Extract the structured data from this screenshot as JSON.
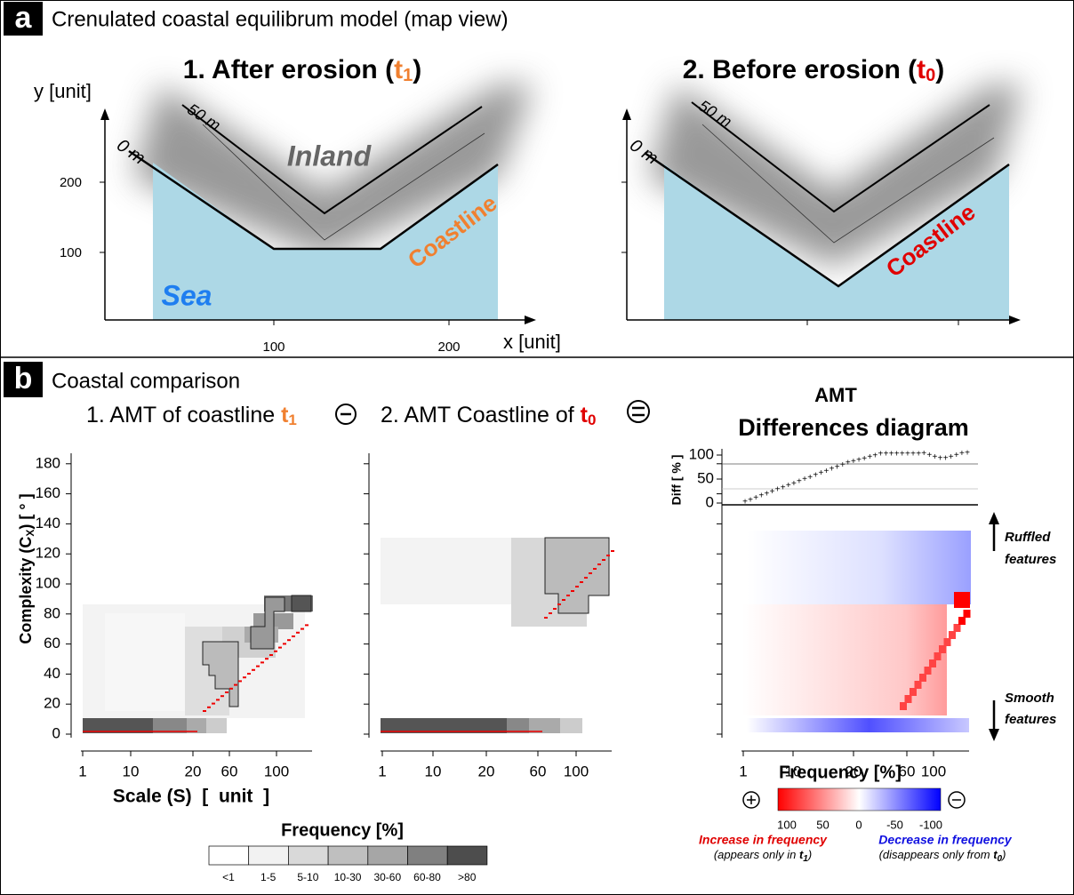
{
  "panel_a": {
    "letter": "a",
    "title": "Crenulated coastal equilibrum model (map view)",
    "map1": {
      "title": "1. After erosion (",
      "time": "t",
      "index": "1",
      "close": ")",
      "y_label": "y [unit]",
      "x_label": "x [unit]",
      "yticks": [
        "200",
        "100"
      ],
      "xticks": [
        "100",
        "200"
      ],
      "contour_0": "0 m",
      "contour_50": "50 m",
      "inland": "Inland",
      "coastline": "Coastline",
      "sea": "Sea"
    },
    "map2": {
      "title": "2. Before erosion (",
      "time": "t",
      "index": "0",
      "close": ")",
      "contour_0": "0 m",
      "contour_50": "50 m",
      "coastline": "Coastline"
    }
  },
  "panel_b": {
    "letter": "b",
    "title": "Coastal comparison",
    "chart1": {
      "title": "1. AMT of coastline ",
      "time": "t",
      "index": "1",
      "xticks": [
        "1",
        "10",
        "20",
        "60",
        "100"
      ],
      "x_label": "Scale (S)  [  unit  ]"
    },
    "chart2": {
      "title": "2. AMT Coastline of ",
      "time": "t",
      "index": "0",
      "xticks": [
        "1",
        "10",
        "20",
        "60",
        "100"
      ]
    },
    "y_label": {
      "text": "Complexity (C",
      "sub": "X",
      "close": ") [ ° ]"
    },
    "yticks": [
      "0",
      "20",
      "40",
      "60",
      "80",
      "100",
      "120",
      "140",
      "160",
      "180"
    ],
    "chart3": {
      "title": "AMT",
      "subtitle": "Differences diagram",
      "diff_label": "Diff [ % ]",
      "diff_ticks": [
        "100",
        "50",
        "0"
      ],
      "ruffled": "Ruffled",
      "ruffled_features": "features",
      "smooth": "Smooth",
      "smooth_features": "features",
      "xticks": [
        "1",
        "10",
        "20",
        "60",
        "100"
      ],
      "x_label": "Frequency [%]",
      "colorbar_ticks": [
        "100",
        "50",
        "0",
        "-50",
        "-100"
      ],
      "increase": "Increase in frequency",
      "increase_note": {
        "text": "(appears only in ",
        "time": "t",
        "index": "1",
        "close": ")"
      },
      "decrease": "Decrease in frequency",
      "decrease_note": {
        "text": "(disappears only from ",
        "time": "t",
        "index": "0",
        "close": ")"
      }
    },
    "legend": {
      "title": "Frequency [%]",
      "labels": [
        "<1",
        "1-5",
        "5-10",
        "10-30",
        "30-60",
        "60-80",
        ">80"
      ]
    }
  }
}
